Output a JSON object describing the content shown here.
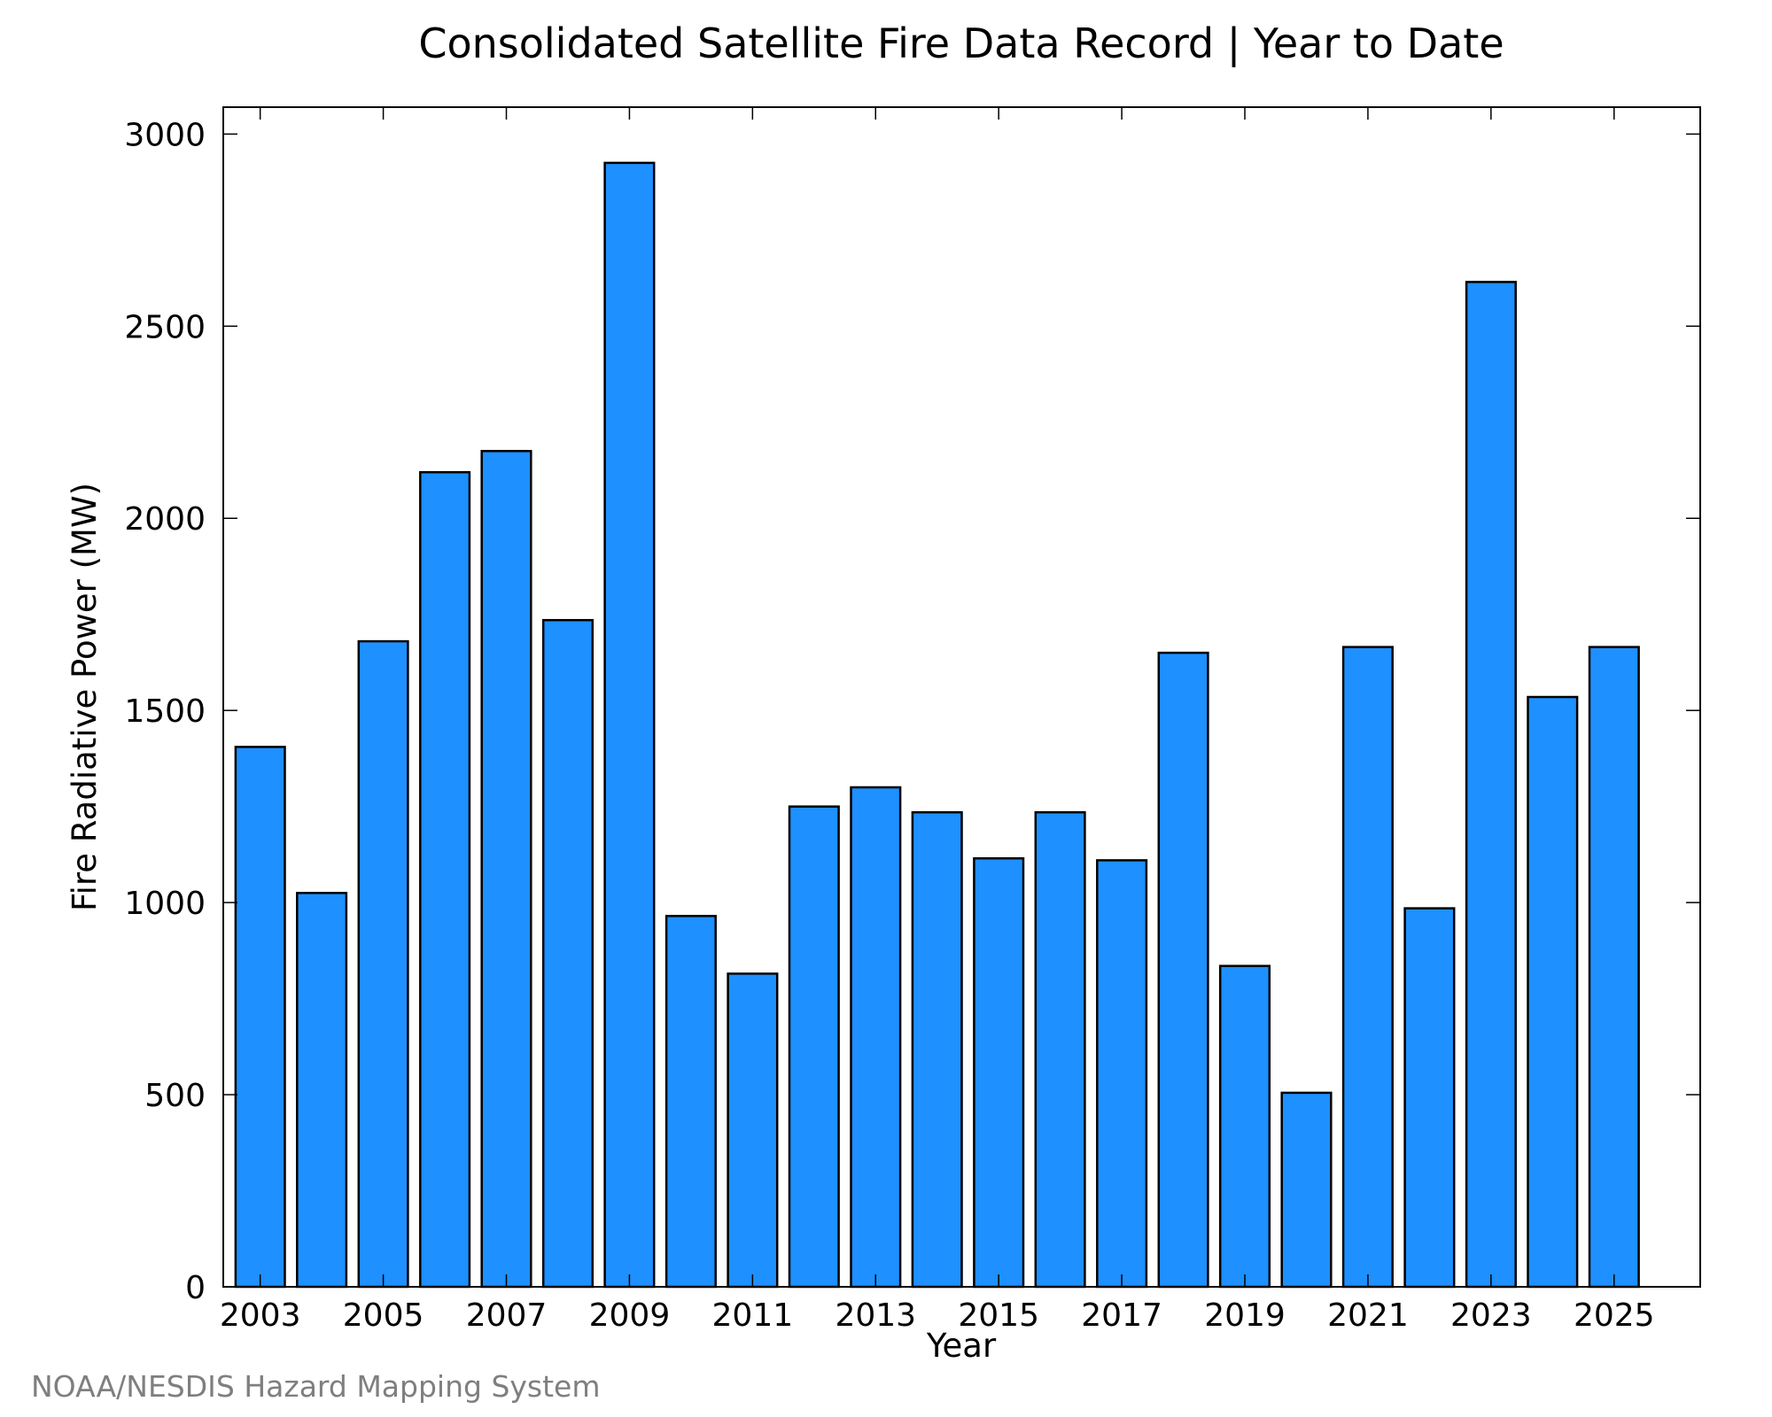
{
  "colors": {
    "bar_fill": "#1e90ff",
    "bar_stroke": "#000000",
    "credit_text": "#7f7f7f"
  },
  "credit": "NOAA/NESDIS Hazard Mapping System",
  "chart_data": {
    "type": "bar",
    "title": "Consolidated Satellite Fire Data Record | Year to Date",
    "xlabel": "Year",
    "ylabel": "Fire Radiative Power (MW)",
    "categories": [
      "2003",
      "2004",
      "2005",
      "2006",
      "2007",
      "2008",
      "2009",
      "2010",
      "2011",
      "2012",
      "2013",
      "2014",
      "2015",
      "2016",
      "2017",
      "2018",
      "2019",
      "2020",
      "2021",
      "2022",
      "2023",
      "2024",
      "2025"
    ],
    "values": [
      1405,
      1025,
      1680,
      2120,
      2175,
      1735,
      2925,
      965,
      815,
      1250,
      1300,
      1235,
      1115,
      1235,
      1110,
      1650,
      835,
      505,
      1665,
      985,
      2615,
      1535,
      1665
    ],
    "xlim": [
      2002.4,
      2026.4
    ],
    "ylim": [
      0,
      3070
    ],
    "x_ticks": [
      "2003",
      "2005",
      "2007",
      "2009",
      "2011",
      "2013",
      "2015",
      "2017",
      "2019",
      "2021",
      "2023",
      "2025"
    ],
    "y_ticks": [
      "0",
      "500",
      "1000",
      "1500",
      "2000",
      "2500",
      "3000"
    ],
    "grid": false,
    "legend": "none"
  }
}
